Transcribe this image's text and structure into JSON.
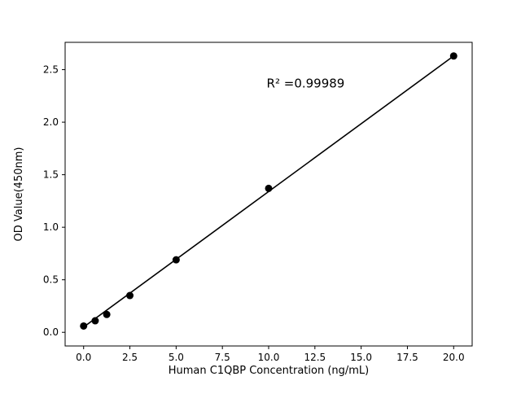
{
  "figure": {
    "background": "#ffffff",
    "axis_color": "#000000"
  },
  "chart_data": {
    "type": "scatter",
    "title": "",
    "xlabel": "Human C1QBP Concentration (ng/mL)",
    "ylabel": "OD Value(450nm)",
    "x": [
      0,
      0.625,
      1.25,
      2.5,
      5,
      10,
      20
    ],
    "y": [
      0.06,
      0.11,
      0.17,
      0.35,
      0.69,
      1.37,
      2.63
    ],
    "fit_line": {
      "x": [
        0,
        20
      ],
      "y": [
        0.05,
        2.63
      ]
    },
    "annotation": {
      "text": "R² =0.99989",
      "x": 12,
      "y": 2.33
    },
    "xlim": [
      -1,
      21
    ],
    "ylim": [
      -0.13,
      2.76
    ],
    "xticks": [
      "0.0",
      "2.5",
      "5.0",
      "7.5",
      "10.0",
      "12.5",
      "15.0",
      "17.5",
      "20.0"
    ],
    "yticks": [
      "0.0",
      "0.5",
      "1.0",
      "1.5",
      "2.0",
      "2.5"
    ],
    "grid": false,
    "legend_position": "none",
    "marker_color": "#000000",
    "line_color": "#000000"
  }
}
